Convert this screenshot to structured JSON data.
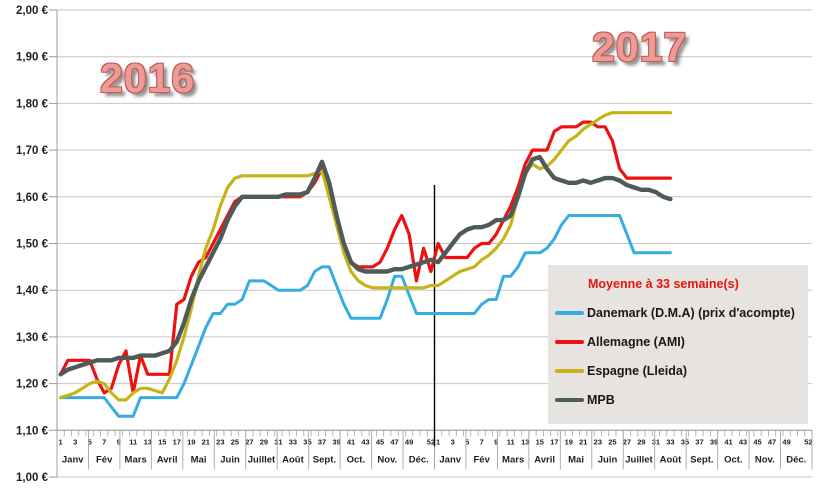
{
  "chart_data": {
    "type": "line",
    "title": "",
    "y_axis": {
      "min": 1.0,
      "max": 2.0,
      "step": 0.1,
      "labels": [
        "2,00 €",
        "1,90 €",
        "1,80 €",
        "1,70 €",
        "1,60 €",
        "1,50 €",
        "1,40 €",
        "1,30 €",
        "1,20 €",
        "1,10 €",
        "1,00 €"
      ]
    },
    "x_axis": {
      "years": [
        "2016",
        "2017"
      ],
      "weeks_per_year": 52,
      "week_labels": [
        "1",
        "3",
        "5",
        "7",
        "9",
        "11",
        "13",
        "15",
        "17",
        "19",
        "21",
        "23",
        "25",
        "27",
        "29",
        "31",
        "33",
        "35",
        "37",
        "39",
        "41",
        "43",
        "45",
        "47",
        "49",
        "52"
      ],
      "months": [
        "Janv",
        "Fév",
        "Mars",
        "Avril",
        "Mai",
        "Juin",
        "Juillet",
        "Août",
        "Sept.",
        "Oct.",
        "Nov.",
        "Déc."
      ]
    },
    "annotations": {
      "year_left": "2016",
      "year_right": "2017"
    },
    "grid": true,
    "legend_position": "right-middle",
    "series": [
      {
        "name": "Danemark (D.M.A) (prix d'acompte)",
        "color": "#35ADE3",
        "stroke_width": 3,
        "values_2016": [
          1.17,
          1.17,
          1.17,
          1.17,
          1.17,
          1.17,
          1.17,
          1.15,
          1.13,
          1.13,
          1.13,
          1.17,
          1.17,
          1.17,
          1.17,
          1.17,
          1.17,
          1.2,
          1.24,
          1.28,
          1.32,
          1.35,
          1.35,
          1.37,
          1.37,
          1.38,
          1.42,
          1.42,
          1.42,
          1.41,
          1.4,
          1.4,
          1.4,
          1.4,
          1.41,
          1.44,
          1.45,
          1.45,
          1.41,
          1.37,
          1.34,
          1.34,
          1.34,
          1.34,
          1.34,
          1.38,
          1.43,
          1.43,
          1.39,
          1.35,
          1.35,
          1.35
        ],
        "values_2017": [
          1.35,
          1.35,
          1.35,
          1.35,
          1.35,
          1.35,
          1.37,
          1.38,
          1.38,
          1.43,
          1.43,
          1.45,
          1.48,
          1.48,
          1.48,
          1.49,
          1.51,
          1.54,
          1.56,
          1.56,
          1.56,
          1.56,
          1.56,
          1.56,
          1.56,
          1.56,
          1.52,
          1.48,
          1.48,
          1.48,
          1.48,
          1.48,
          1.48
        ]
      },
      {
        "name": "Allemagne (AMI)",
        "color": "#EE1111",
        "stroke_width": 3.2,
        "values_2016": [
          1.22,
          1.25,
          1.25,
          1.25,
          1.25,
          1.21,
          1.18,
          1.19,
          1.24,
          1.27,
          1.18,
          1.26,
          1.22,
          1.22,
          1.22,
          1.22,
          1.37,
          1.38,
          1.43,
          1.46,
          1.47,
          1.5,
          1.53,
          1.56,
          1.59,
          1.6,
          1.6,
          1.6,
          1.6,
          1.6,
          1.6,
          1.6,
          1.6,
          1.6,
          1.61,
          1.63,
          1.66,
          1.6,
          1.55,
          1.5,
          1.46,
          1.45,
          1.45,
          1.45,
          1.46,
          1.49,
          1.53,
          1.56,
          1.52,
          1.42,
          1.49,
          1.44
        ],
        "values_2017": [
          1.5,
          1.47,
          1.47,
          1.47,
          1.47,
          1.49,
          1.5,
          1.5,
          1.52,
          1.55,
          1.58,
          1.62,
          1.67,
          1.7,
          1.7,
          1.7,
          1.74,
          1.75,
          1.75,
          1.75,
          1.76,
          1.76,
          1.75,
          1.75,
          1.72,
          1.66,
          1.64,
          1.64,
          1.64,
          1.64,
          1.64,
          1.64,
          1.64
        ]
      },
      {
        "name": "Espagne (Lleida)",
        "color": "#C6B416",
        "stroke_width": 3.2,
        "values_2016": [
          1.17,
          1.175,
          1.18,
          1.19,
          1.2,
          1.205,
          1.2,
          1.18,
          1.165,
          1.165,
          1.18,
          1.19,
          1.19,
          1.185,
          1.18,
          1.21,
          1.25,
          1.3,
          1.36,
          1.43,
          1.49,
          1.53,
          1.58,
          1.62,
          1.64,
          1.645,
          1.645,
          1.645,
          1.645,
          1.645,
          1.645,
          1.645,
          1.645,
          1.645,
          1.645,
          1.65,
          1.655,
          1.6,
          1.54,
          1.48,
          1.44,
          1.42,
          1.41,
          1.405,
          1.405,
          1.405,
          1.405,
          1.405,
          1.405,
          1.405,
          1.405,
          1.41
        ],
        "values_2017": [
          1.41,
          1.42,
          1.43,
          1.44,
          1.445,
          1.45,
          1.465,
          1.475,
          1.49,
          1.51,
          1.54,
          1.6,
          1.65,
          1.67,
          1.66,
          1.665,
          1.68,
          1.7,
          1.72,
          1.73,
          1.745,
          1.755,
          1.765,
          1.775,
          1.78,
          1.78,
          1.78,
          1.78,
          1.78,
          1.78,
          1.78,
          1.78,
          1.78
        ]
      },
      {
        "name": "MPB",
        "color": "#4E5B59",
        "stroke_width": 4.4,
        "values_2016": [
          1.22,
          1.23,
          1.235,
          1.24,
          1.245,
          1.25,
          1.25,
          1.25,
          1.255,
          1.255,
          1.255,
          1.26,
          1.26,
          1.26,
          1.265,
          1.27,
          1.29,
          1.33,
          1.38,
          1.42,
          1.45,
          1.48,
          1.51,
          1.55,
          1.58,
          1.6,
          1.6,
          1.6,
          1.6,
          1.6,
          1.6,
          1.605,
          1.605,
          1.605,
          1.61,
          1.64,
          1.675,
          1.63,
          1.56,
          1.5,
          1.46,
          1.445,
          1.44,
          1.44,
          1.44,
          1.44,
          1.445,
          1.445,
          1.45,
          1.455,
          1.46,
          1.465
        ],
        "values_2017": [
          1.46,
          1.48,
          1.5,
          1.52,
          1.53,
          1.535,
          1.535,
          1.54,
          1.55,
          1.55,
          1.56,
          1.6,
          1.65,
          1.68,
          1.685,
          1.66,
          1.64,
          1.635,
          1.63,
          1.63,
          1.635,
          1.63,
          1.635,
          1.64,
          1.64,
          1.635,
          1.625,
          1.62,
          1.615,
          1.615,
          1.61,
          1.6,
          1.595
        ]
      }
    ],
    "legend": {
      "title": "Moyenne à  33 semaine(s)",
      "items": [
        {
          "label": "Danemark (D.M.A) (prix d'acompte)",
          "color": "#35ADE3"
        },
        {
          "label": "Allemagne (AMI)",
          "color": "#EE1111"
        },
        {
          "label": "Espagne (Lleida)",
          "color": "#C6B416"
        },
        {
          "label": "MPB",
          "color": "#4E5B59"
        }
      ]
    }
  }
}
